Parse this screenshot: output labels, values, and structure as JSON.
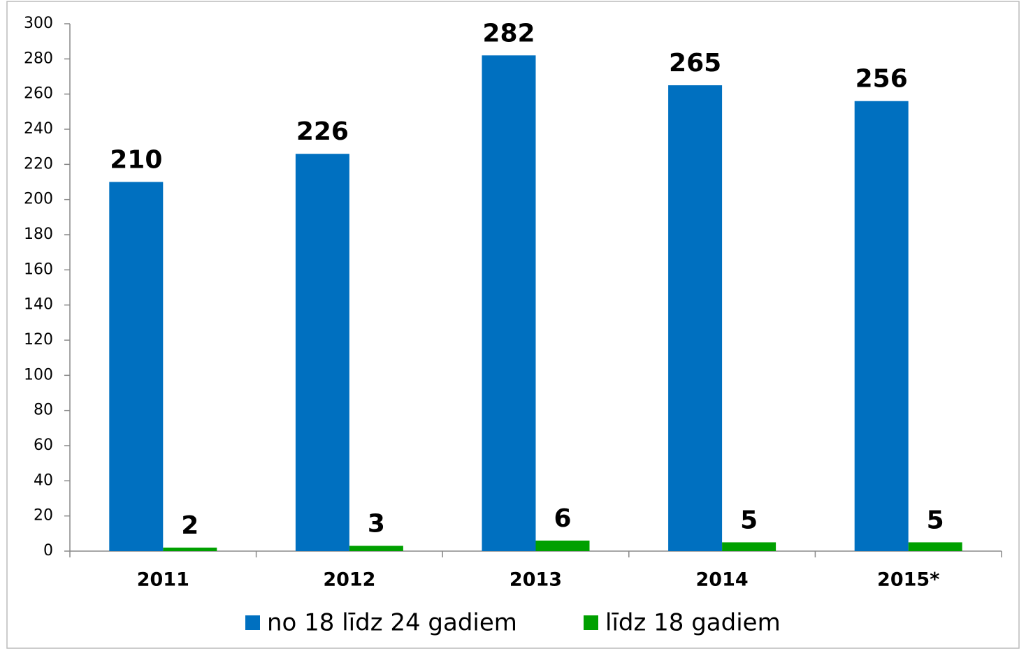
{
  "chart_data": {
    "type": "bar",
    "categories": [
      "2011",
      "2012",
      "2013",
      "2014",
      "2015*"
    ],
    "series": [
      {
        "name": "no 18 līdz 24 gadiem",
        "color": "#0070c0",
        "values": [
          210,
          226,
          282,
          265,
          256
        ]
      },
      {
        "name": "līdz 18 gadiem",
        "color": "#00a000",
        "values": [
          2,
          3,
          6,
          5,
          5
        ]
      }
    ],
    "ylim": [
      0,
      300
    ],
    "yticks": [
      0,
      20,
      40,
      60,
      80,
      100,
      120,
      140,
      160,
      180,
      200,
      220,
      240,
      260,
      280,
      300
    ],
    "grid": false,
    "legend": "bottom"
  }
}
